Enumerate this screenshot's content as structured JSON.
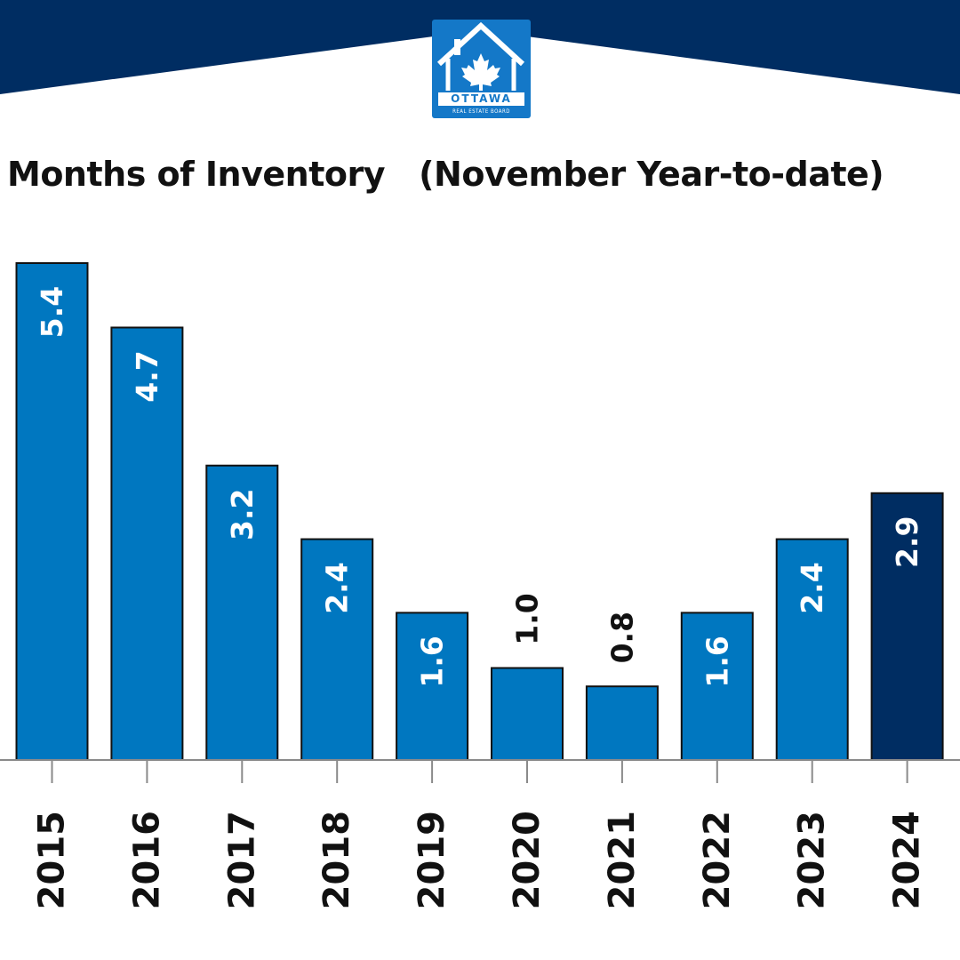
{
  "brand": {
    "name": "OTTAWA",
    "subtitle": "REAL ESTATE BOARD",
    "banner_color": "#002d62",
    "logo_color": "#1478c8"
  },
  "chart_data": {
    "type": "bar",
    "title": "Months of Inventory   (November Year-to-date)",
    "categories": [
      "2015",
      "2016",
      "2017",
      "2018",
      "2019",
      "2020",
      "2021",
      "2022",
      "2023",
      "2024"
    ],
    "values": [
      5.4,
      4.7,
      3.2,
      2.4,
      1.6,
      1.0,
      0.8,
      1.6,
      2.4,
      2.9
    ],
    "data_labels": [
      "5.4",
      "4.7",
      "3.2",
      "2.4",
      "1.6",
      "1.0",
      "0.8",
      "1.6",
      "2.4",
      "2.9"
    ],
    "ylim": [
      0,
      5.4
    ],
    "grid": false,
    "bar_color": "#0077c0",
    "highlight_color": "#002d62",
    "highlight_category": "2024"
  }
}
